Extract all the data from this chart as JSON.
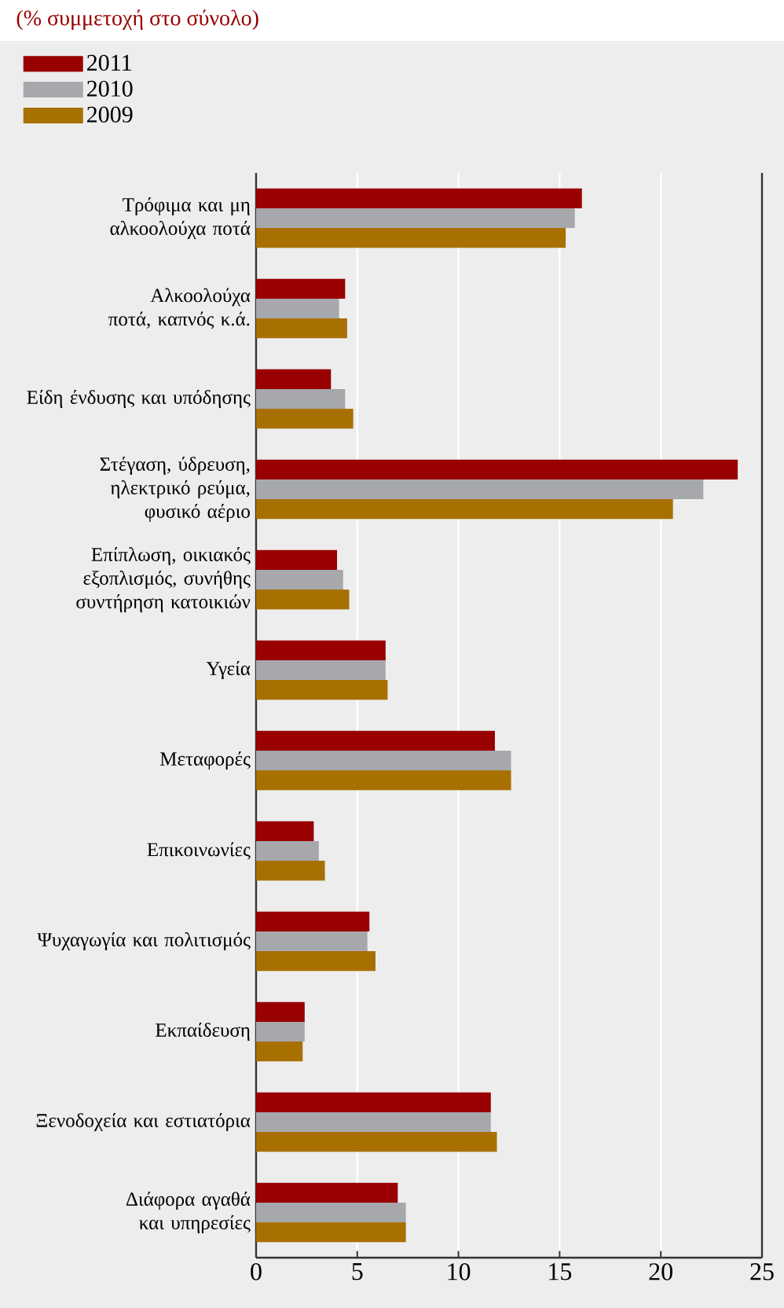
{
  "chart_data": {
    "type": "bar",
    "orientation": "horizontal",
    "subtitle": "(% συμμετοχή στο σύνολο)",
    "categories": [
      "Τρόφιμα και μη αλκοολούχα ποτά",
      "Αλκοολούχα ποτά, καπνός κ.ά.",
      "Είδη ένδυσης και υπόδησης",
      "Στέγαση, ύδρευση, ηλεκτρικό ρεύμα, φυσικό αέριο",
      "Επίπλωση, οικιακός εξοπλισμός, συνήθης συντήρηση κατοικιών",
      "Υγεία",
      "Μεταφορές",
      "Επικοινωνίες",
      "Ψυχαγωγία και πολιτισμός",
      "Εκπαίδευση",
      "Ξενοδοχεία και εστιατόρια",
      "Διάφορα αγαθά και υπηρεσίες"
    ],
    "series": [
      {
        "name": "2011",
        "color": "#990000",
        "values": [
          16.1,
          4.4,
          3.7,
          23.8,
          4.0,
          6.4,
          11.8,
          2.85,
          5.6,
          2.4,
          11.6,
          7.0
        ]
      },
      {
        "name": "2010",
        "color": "#a7a8ab",
        "values": [
          15.75,
          4.1,
          4.4,
          22.1,
          4.3,
          6.4,
          12.6,
          3.1,
          5.5,
          2.4,
          11.6,
          7.4
        ]
      },
      {
        "name": "2009",
        "color": "#a87000",
        "values": [
          15.3,
          4.5,
          4.8,
          20.6,
          4.6,
          6.5,
          12.6,
          3.4,
          5.9,
          2.3,
          11.9,
          7.4
        ]
      }
    ],
    "xlim": [
      0,
      25
    ],
    "xticks": [
      0,
      5,
      10,
      15,
      20,
      25
    ],
    "grid": "x",
    "legend": "top left"
  }
}
